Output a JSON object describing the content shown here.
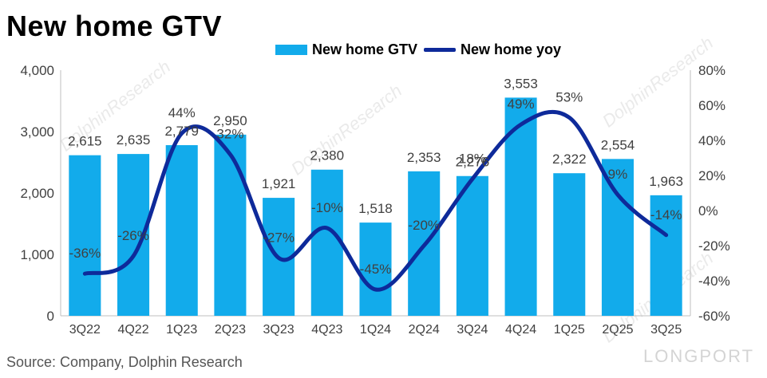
{
  "title": "New home GTV",
  "source": "Source: Company, Dolphin Research",
  "watermark": "LONGPORT",
  "watermark_diagonal": "DolphinResearch",
  "colors": {
    "bar": "#12ABEB",
    "line": "#0E2A9A",
    "axis": "#bfbfbf",
    "text": "#404040"
  },
  "chart_data": {
    "type": "bar",
    "categories": [
      "3Q22",
      "4Q22",
      "1Q23",
      "2Q23",
      "3Q23",
      "4Q23",
      "1Q24",
      "2Q24",
      "3Q24",
      "4Q24",
      "1Q25",
      "2Q25",
      "3Q25"
    ],
    "series": [
      {
        "name": "New home GTV",
        "type": "bar",
        "axis": "left",
        "values": [
          2615,
          2635,
          2779,
          2950,
          1921,
          2380,
          1518,
          2353,
          2276,
          3553,
          2322,
          2554,
          1963
        ],
        "labels": [
          "2,615",
          "2,635",
          "2,779",
          "2,950",
          "1,921",
          "2,380",
          "1,518",
          "2,353",
          "2,276",
          "3,553",
          "2,322",
          "2,554",
          "1,963"
        ]
      },
      {
        "name": "New home yoy",
        "type": "line",
        "axis": "right",
        "values": [
          -36,
          -26,
          44,
          32,
          -27,
          -10,
          -45,
          -20,
          18,
          49,
          53,
          9,
          -14
        ],
        "labels": [
          "-36%",
          "-26%",
          "44%",
          "32%",
          "-27%",
          "-10%",
          "-45%",
          "-20%",
          "18%",
          "49%",
          "53%",
          "9%",
          "-14%"
        ]
      }
    ],
    "left_axis": {
      "min": 0,
      "max": 4000,
      "ticks": [
        "0",
        "1,000",
        "2,000",
        "3,000",
        "4,000"
      ]
    },
    "right_axis": {
      "min": -60,
      "max": 80,
      "ticks": [
        "-60%",
        "-40%",
        "-20%",
        "0%",
        "20%",
        "40%",
        "60%",
        "80%"
      ]
    },
    "legend_position": "top",
    "grid": false
  }
}
